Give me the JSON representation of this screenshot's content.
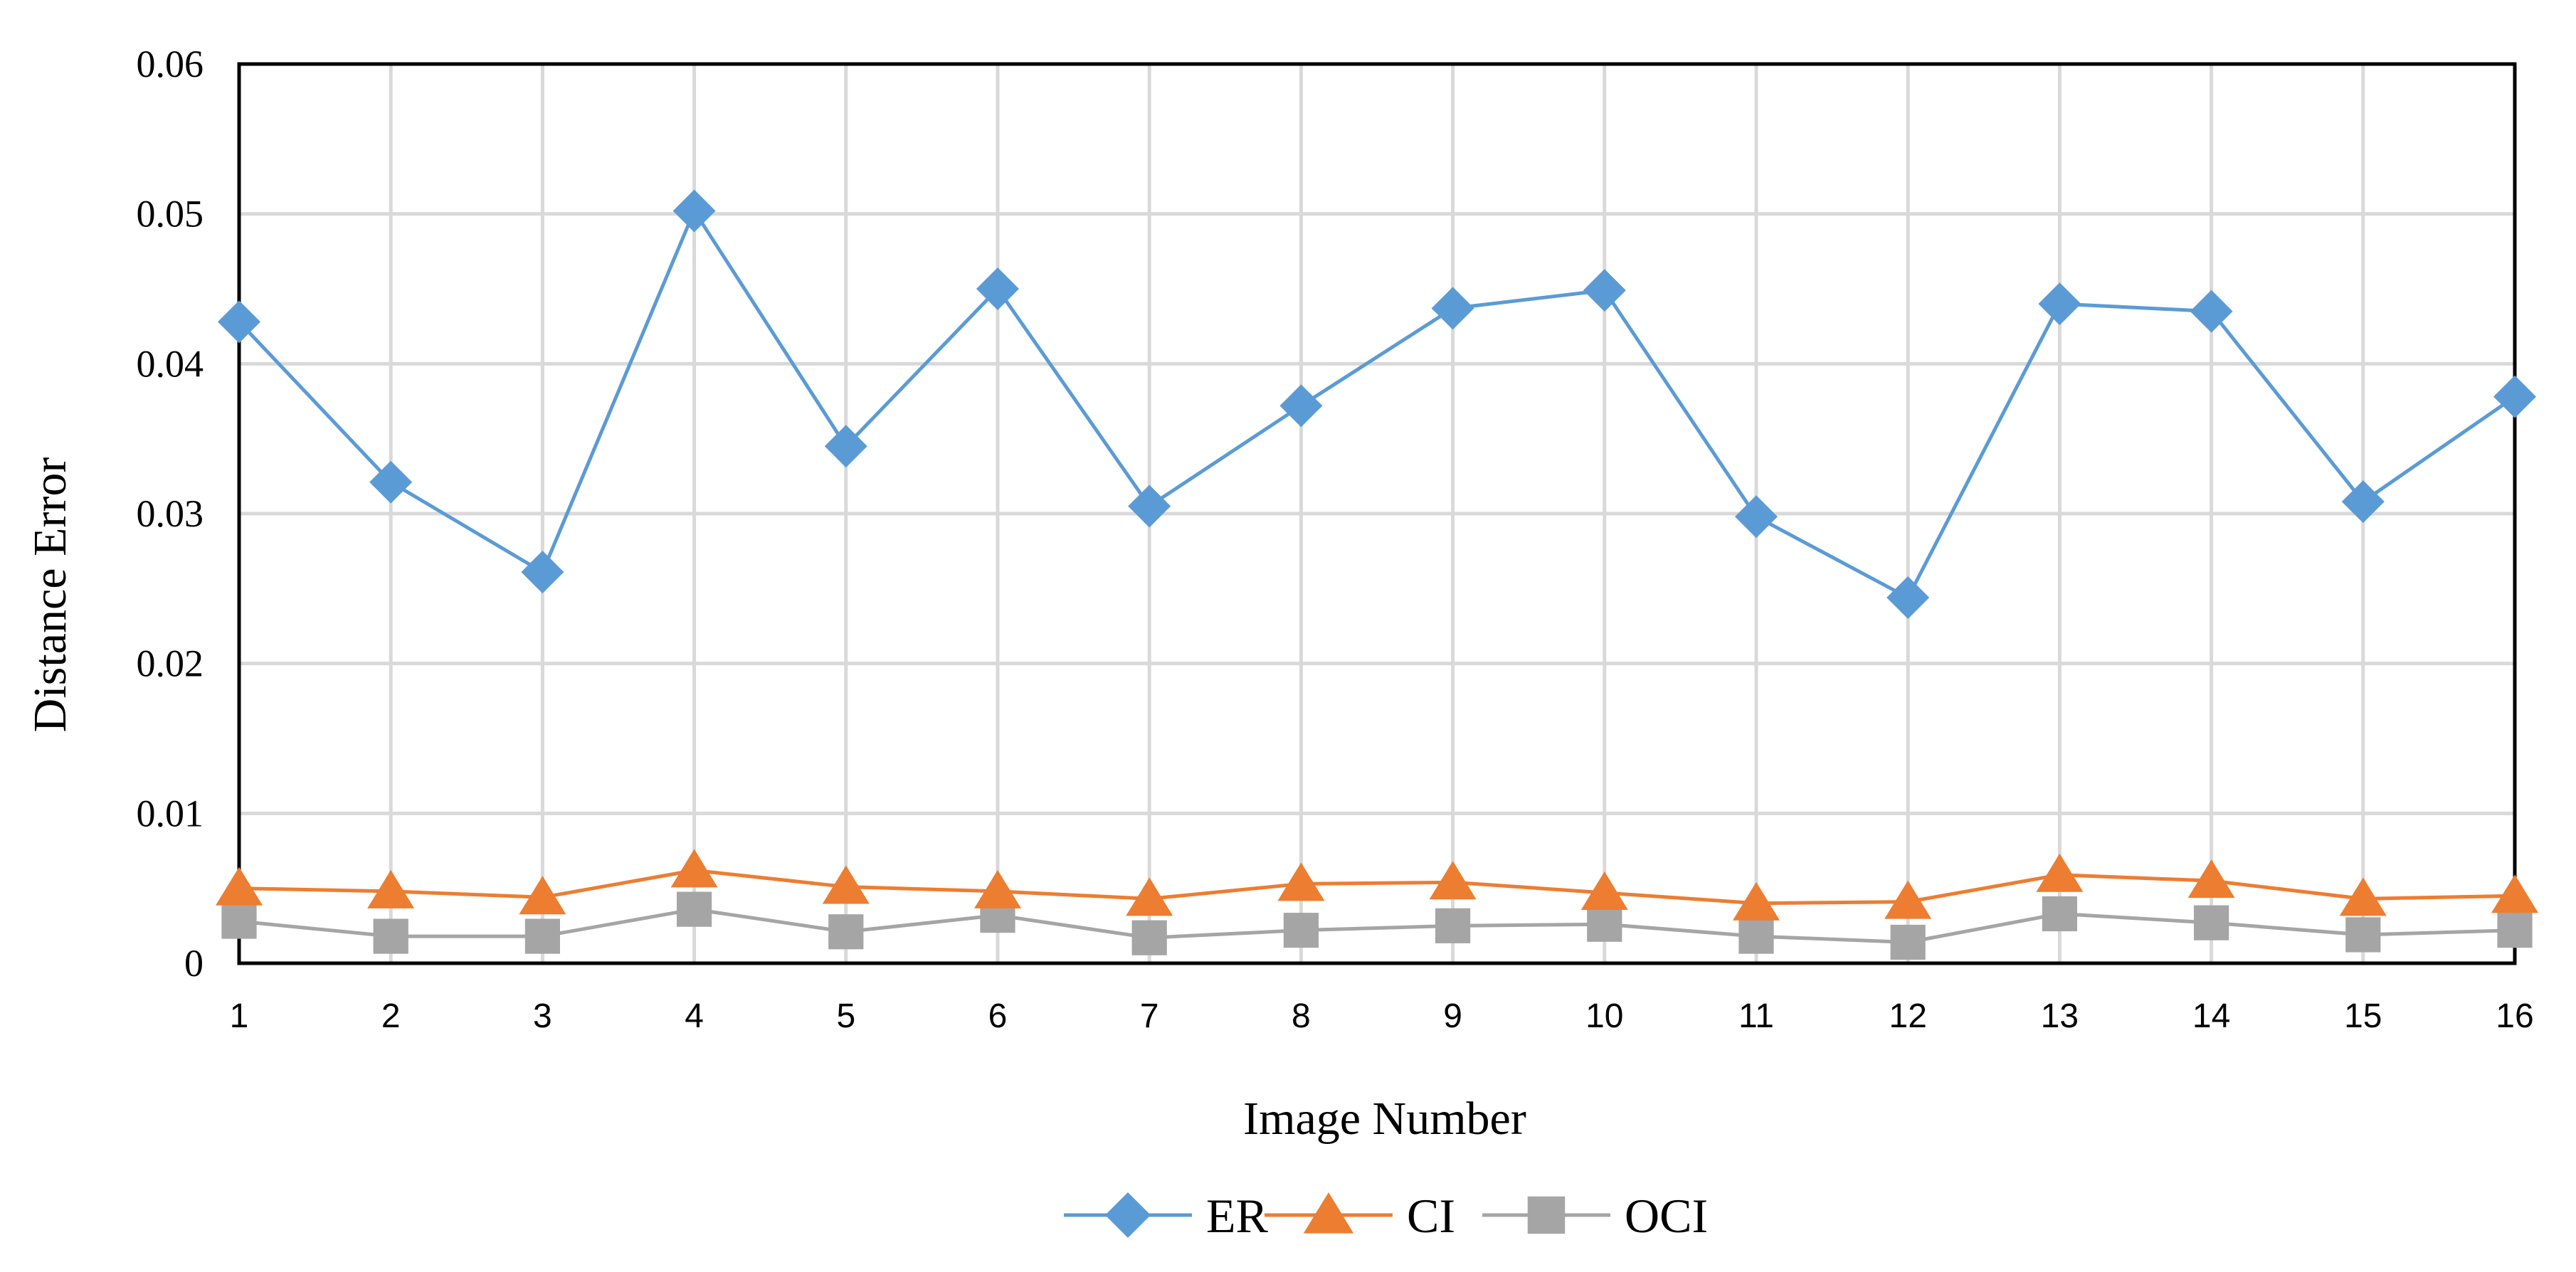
{
  "chart_data": {
    "type": "line",
    "title": "",
    "xlabel": "Image Number",
    "ylabel": "Distance Error",
    "x": [
      1,
      2,
      3,
      4,
      5,
      6,
      7,
      8,
      9,
      10,
      11,
      12,
      13,
      14,
      15,
      16
    ],
    "xlim": [
      1,
      16
    ],
    "ylim": [
      0,
      0.06
    ],
    "y_ticks": [
      "0",
      "0.01",
      "0.02",
      "0.03",
      "0.04",
      "0.05",
      "0.06"
    ],
    "grid": true,
    "legend_position": "bottom",
    "series": [
      {
        "name": "ER",
        "color": "#5B9BD5",
        "marker": "diamond",
        "values": [
          0.0428,
          0.0321,
          0.0261,
          0.0502,
          0.0345,
          0.045,
          0.0305,
          0.0372,
          0.0437,
          0.0449,
          0.0298,
          0.0244,
          0.044,
          0.0435,
          0.0308,
          0.0378
        ]
      },
      {
        "name": "CI",
        "color": "#ED7D31",
        "marker": "triangle",
        "values": [
          0.005,
          0.0048,
          0.0044,
          0.0062,
          0.0051,
          0.0048,
          0.0043,
          0.0053,
          0.0054,
          0.0047,
          0.004,
          0.0041,
          0.0059,
          0.0055,
          0.0043,
          0.0045
        ]
      },
      {
        "name": "OCI",
        "color": "#A5A5A5",
        "marker": "square",
        "values": [
          0.0028,
          0.0018,
          0.0018,
          0.0036,
          0.0021,
          0.0032,
          0.0017,
          0.0022,
          0.0025,
          0.0026,
          0.0018,
          0.0014,
          0.0033,
          0.0027,
          0.0019,
          0.0022
        ]
      }
    ]
  }
}
